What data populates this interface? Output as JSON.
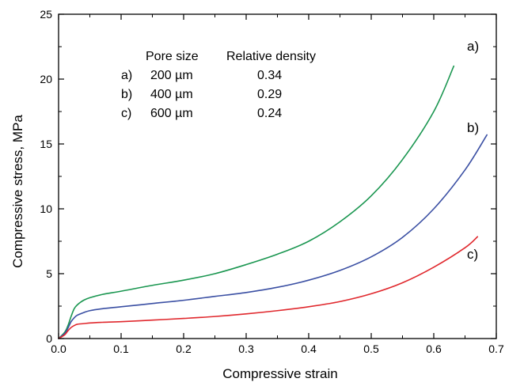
{
  "chart_data": {
    "type": "line",
    "xlabel": "Compressive strain",
    "ylabel": "Compressive stress, MPa",
    "xlim": [
      0.0,
      0.7
    ],
    "ylim": [
      0,
      25
    ],
    "xticks": [
      0.0,
      0.1,
      0.2,
      0.3,
      0.4,
      0.5,
      0.6,
      0.7
    ],
    "xtick_labels": [
      "0.0",
      "0.1",
      "0.2",
      "0.3",
      "0.4",
      "0.5",
      "0.6",
      "0.7"
    ],
    "yticks": [
      0,
      5,
      10,
      15,
      20,
      25
    ],
    "ytick_labels": [
      "0",
      "5",
      "10",
      "15",
      "20",
      "25"
    ],
    "grid": false,
    "legend_table": {
      "headers": [
        "Pore size",
        "Relative density"
      ],
      "rows": [
        {
          "id": "a)",
          "pore_size": "200 µm",
          "relative_density": "0.34"
        },
        {
          "id": "b)",
          "pore_size": "400 µm",
          "relative_density": "0.29"
        },
        {
          "id": "c)",
          "pore_size": "600 µm",
          "relative_density": "0.24"
        }
      ]
    },
    "series": [
      {
        "name": "a)",
        "color": "#1a9650",
        "x": [
          0.0,
          0.01,
          0.015,
          0.02,
          0.025,
          0.03,
          0.04,
          0.05,
          0.07,
          0.1,
          0.15,
          0.2,
          0.25,
          0.3,
          0.35,
          0.4,
          0.45,
          0.5,
          0.55,
          0.6,
          0.632
        ],
        "y": [
          0.0,
          0.5,
          1.0,
          1.7,
          2.3,
          2.6,
          2.95,
          3.15,
          3.4,
          3.65,
          4.1,
          4.5,
          5.0,
          5.7,
          6.5,
          7.5,
          9.0,
          11.0,
          13.8,
          17.5,
          21.0
        ]
      },
      {
        "name": "b)",
        "color": "#3a4fa3",
        "x": [
          0.0,
          0.01,
          0.015,
          0.02,
          0.025,
          0.03,
          0.04,
          0.05,
          0.07,
          0.1,
          0.15,
          0.2,
          0.25,
          0.3,
          0.35,
          0.4,
          0.45,
          0.5,
          0.55,
          0.6,
          0.65,
          0.685
        ],
        "y": [
          0.0,
          0.4,
          0.8,
          1.3,
          1.6,
          1.8,
          2.0,
          2.15,
          2.3,
          2.45,
          2.7,
          2.95,
          3.25,
          3.55,
          3.95,
          4.5,
          5.25,
          6.3,
          7.8,
          10.0,
          13.0,
          15.7
        ]
      },
      {
        "name": "c)",
        "color": "#e0282d",
        "x": [
          0.0,
          0.01,
          0.015,
          0.02,
          0.025,
          0.03,
          0.04,
          0.05,
          0.07,
          0.1,
          0.15,
          0.2,
          0.25,
          0.3,
          0.35,
          0.4,
          0.45,
          0.5,
          0.55,
          0.6,
          0.65,
          0.67
        ],
        "y": [
          0.0,
          0.3,
          0.6,
          0.85,
          1.0,
          1.1,
          1.15,
          1.2,
          1.25,
          1.3,
          1.42,
          1.55,
          1.7,
          1.9,
          2.15,
          2.45,
          2.85,
          3.45,
          4.3,
          5.5,
          7.0,
          7.85
        ]
      }
    ]
  }
}
